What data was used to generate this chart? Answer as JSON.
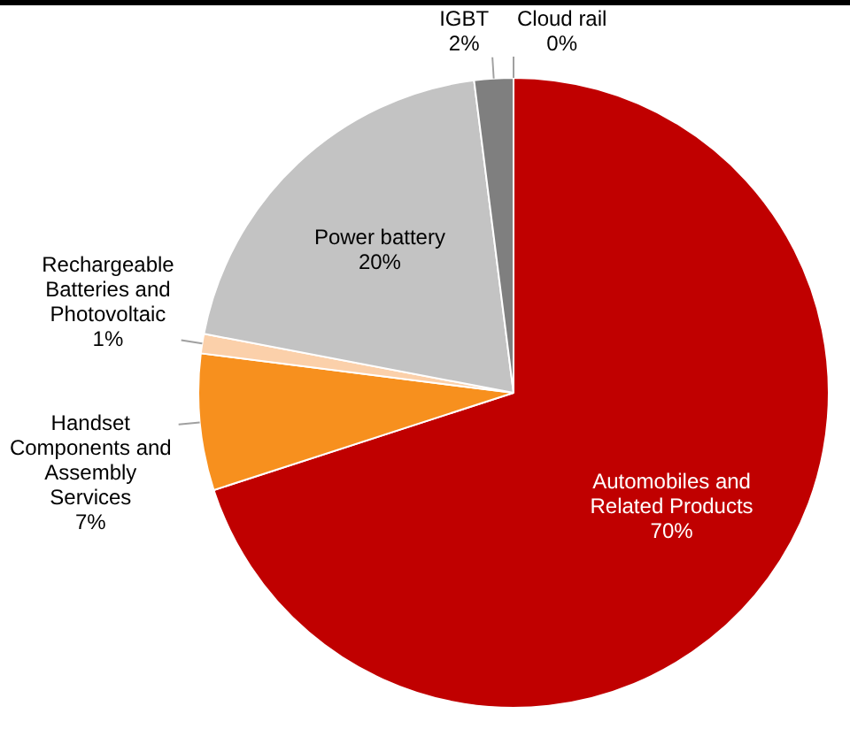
{
  "chart_data": {
    "type": "pie",
    "categories": [
      "Automobiles and Related Products",
      "Handset Components and Assembly Services",
      "Rechargeable Batteries and Photovoltaic",
      "Power battery",
      "IGBT",
      "Cloud rail"
    ],
    "values": [
      70,
      7,
      1,
      20,
      2,
      0
    ],
    "colors": [
      "#c00000",
      "#f7901e",
      "#fbd0aa",
      "#c3c3c3",
      "#7f7f7f",
      "#a6a6a6"
    ],
    "value_labels": [
      "70%",
      "7%",
      "1%",
      "20%",
      "2%",
      "0%"
    ],
    "legend": false
  }
}
